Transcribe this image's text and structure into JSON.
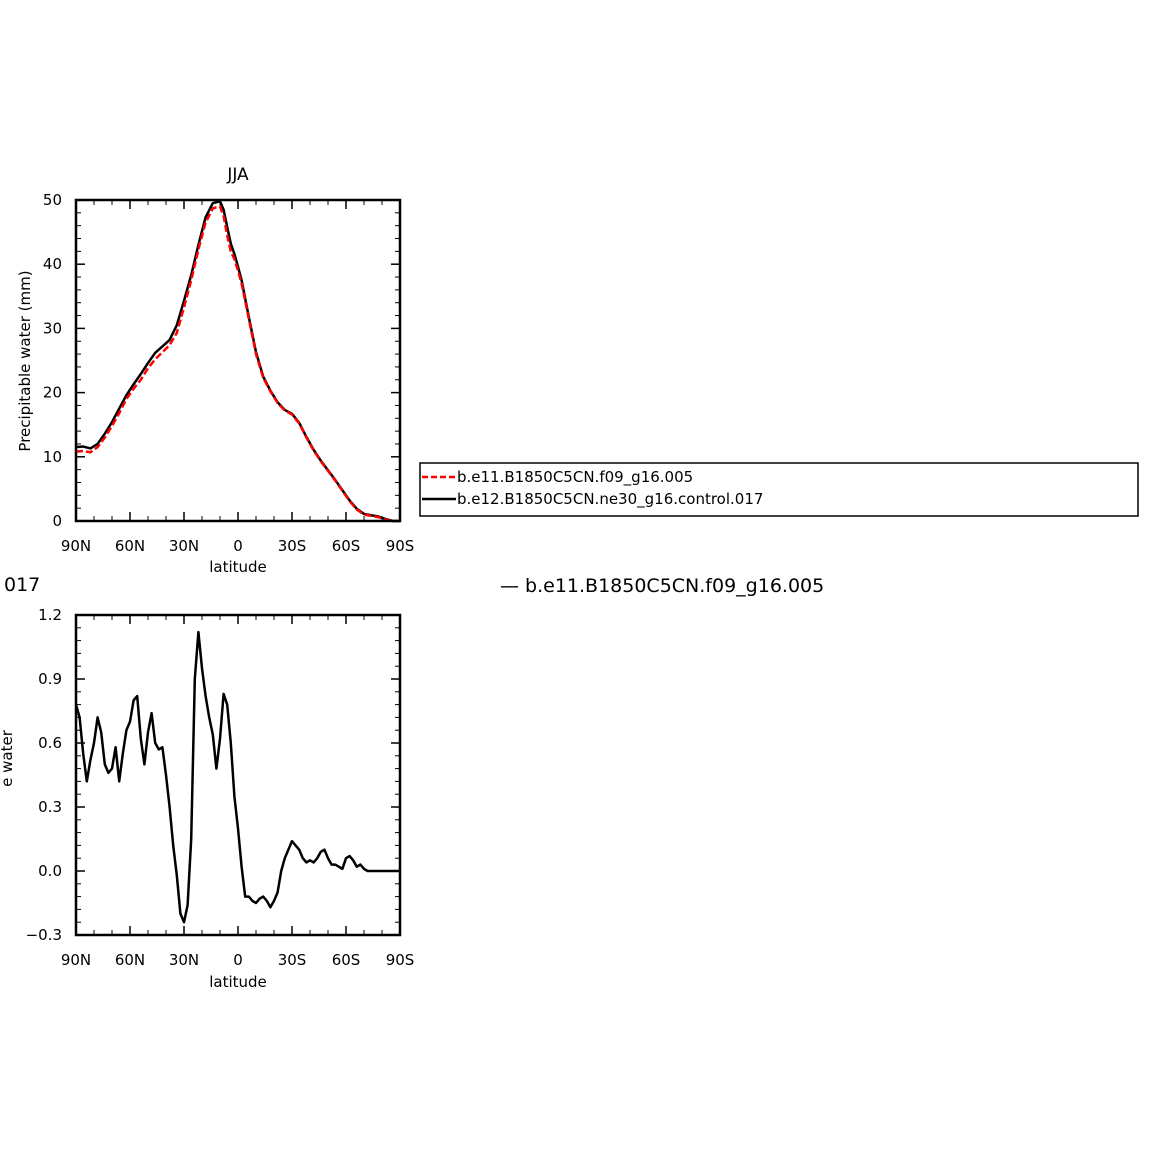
{
  "figure": {
    "clipped_left_text": "017",
    "clipped_right_text": "— b.e11.B1850C5CN.f09_g16.005"
  },
  "legend": {
    "entries": [
      {
        "label": "b.e11.B1850C5CN.f09_g16.005",
        "color": "#ff0000",
        "dash": "dashed"
      },
      {
        "label": "b.e12.B1850C5CN.ne30_g16.control.017",
        "color": "#000000",
        "dash": "solid"
      }
    ]
  },
  "chart_data": [
    {
      "type": "line",
      "title": "JJA",
      "xlabel": "latitude",
      "ylabel": "Precipitable water (mm)",
      "xlim": [
        90,
        -90
      ],
      "ylim": [
        0,
        50
      ],
      "xticks": [
        90,
        60,
        30,
        0,
        -30,
        -60,
        -90
      ],
      "xtick_labels": [
        "90N",
        "60N",
        "30N",
        "0",
        "30S",
        "60S",
        "90S"
      ],
      "yticks": [
        0,
        10,
        20,
        30,
        40,
        50
      ],
      "ytick_labels": [
        "0",
        "10",
        "20",
        "30",
        "40",
        "50"
      ],
      "x": [
        90,
        86,
        82,
        78,
        74,
        70,
        66,
        62,
        58,
        54,
        50,
        46,
        42,
        38,
        34,
        30,
        26,
        22,
        18,
        14,
        10,
        8,
        6,
        4,
        2,
        0,
        -2,
        -6,
        -10,
        -14,
        -18,
        -22,
        -26,
        -30,
        -34,
        -38,
        -42,
        -46,
        -50,
        -54,
        -58,
        -62,
        -66,
        -70,
        -74,
        -78,
        -82,
        -86,
        -90
      ],
      "series": [
        {
          "name": "b.e11.B1850C5CN.f09_g16.005",
          "color": "#ff0000",
          "dash": "dashed",
          "values": [
            10.8,
            10.9,
            10.7,
            11.5,
            13.0,
            14.8,
            16.8,
            19.0,
            20.6,
            22.0,
            23.8,
            25.2,
            26.3,
            27.4,
            29.3,
            33.3,
            37.5,
            42.3,
            46.5,
            48.7,
            49.0,
            47.5,
            44.5,
            42.0,
            40.8,
            39.0,
            37.0,
            31.5,
            26.0,
            22.3,
            20.2,
            18.4,
            17.2,
            16.6,
            15.2,
            13.0,
            11.0,
            9.3,
            7.8,
            6.3,
            4.7,
            3.1,
            1.8,
            1.0,
            0.8,
            0.6,
            0.2,
            0.0,
            0.0
          ]
        },
        {
          "name": "b.e12.B1850C5CN.ne30_g16.control.017",
          "color": "#000000",
          "dash": "solid",
          "values": [
            11.5,
            11.6,
            11.3,
            12.0,
            13.6,
            15.4,
            17.5,
            19.6,
            21.3,
            22.9,
            24.6,
            26.2,
            27.2,
            28.2,
            30.5,
            34.3,
            38.3,
            43.0,
            47.3,
            49.5,
            49.8,
            48.5,
            45.8,
            43.2,
            41.6,
            39.6,
            37.5,
            31.8,
            26.3,
            22.5,
            20.3,
            18.5,
            17.3,
            16.7,
            15.3,
            13.1,
            11.1,
            9.4,
            7.9,
            6.4,
            4.8,
            3.2,
            1.9,
            1.1,
            0.9,
            0.7,
            0.3,
            0.0,
            0.0
          ]
        }
      ]
    },
    {
      "type": "line",
      "title": "",
      "xlabel": "latitude",
      "ylabel": "Precipitable water (mm)",
      "xlim": [
        90,
        -90
      ],
      "ylim": [
        -0.3,
        1.2
      ],
      "xticks": [
        90,
        60,
        30,
        0,
        -30,
        -60,
        -90
      ],
      "xtick_labels": [
        "90N",
        "60N",
        "30N",
        "0",
        "30S",
        "60S",
        "90S"
      ],
      "yticks": [
        -0.3,
        0.0,
        0.3,
        0.6,
        0.9,
        1.2
      ],
      "ytick_labels": [
        "−0.3",
        "0.0",
        "0.3",
        "0.6",
        "0.9",
        "1.2"
      ],
      "x": [
        90,
        88,
        86,
        84,
        82,
        80,
        78,
        76,
        74,
        72,
        70,
        68,
        66,
        64,
        62,
        60,
        58,
        56,
        54,
        52,
        50,
        48,
        46,
        44,
        42,
        40,
        38,
        36,
        34,
        32,
        30,
        28,
        26,
        24,
        22,
        20,
        18,
        16,
        14,
        12,
        10,
        8,
        6,
        4,
        2,
        0,
        -2,
        -4,
        -6,
        -8,
        -10,
        -12,
        -14,
        -16,
        -18,
        -20,
        -22,
        -24,
        -26,
        -28,
        -30,
        -32,
        -34,
        -36,
        -38,
        -40,
        -42,
        -44,
        -46,
        -48,
        -50,
        -52,
        -54,
        -56,
        -58,
        -60,
        -62,
        -64,
        -66,
        -68,
        -70,
        -72,
        -74,
        -76,
        -78,
        -80,
        -82,
        -84,
        -86,
        -88,
        -90
      ],
      "series": [
        {
          "name": "",
          "color": "#000000",
          "dash": "solid",
          "values": [
            0.78,
            0.72,
            0.55,
            0.42,
            0.52,
            0.6,
            0.72,
            0.65,
            0.5,
            0.46,
            0.48,
            0.58,
            0.42,
            0.55,
            0.66,
            0.7,
            0.8,
            0.82,
            0.62,
            0.5,
            0.65,
            0.74,
            0.6,
            0.57,
            0.58,
            0.45,
            0.3,
            0.12,
            -0.02,
            -0.2,
            -0.24,
            -0.16,
            0.15,
            0.9,
            1.12,
            0.95,
            0.82,
            0.72,
            0.64,
            0.48,
            0.62,
            0.83,
            0.78,
            0.6,
            0.35,
            0.2,
            0.02,
            -0.12,
            -0.12,
            -0.14,
            -0.15,
            -0.13,
            -0.12,
            -0.14,
            -0.17,
            -0.14,
            -0.1,
            0.0,
            0.06,
            0.1,
            0.14,
            0.12,
            0.1,
            0.06,
            0.04,
            0.05,
            0.04,
            0.06,
            0.09,
            0.1,
            0.06,
            0.03,
            0.03,
            0.02,
            0.01,
            0.06,
            0.07,
            0.05,
            0.02,
            0.03,
            0.01,
            0.0,
            0.0,
            0.0,
            0.0,
            0.0,
            0.0,
            0.0,
            0.0,
            0.0,
            0.0
          ]
        }
      ]
    }
  ]
}
